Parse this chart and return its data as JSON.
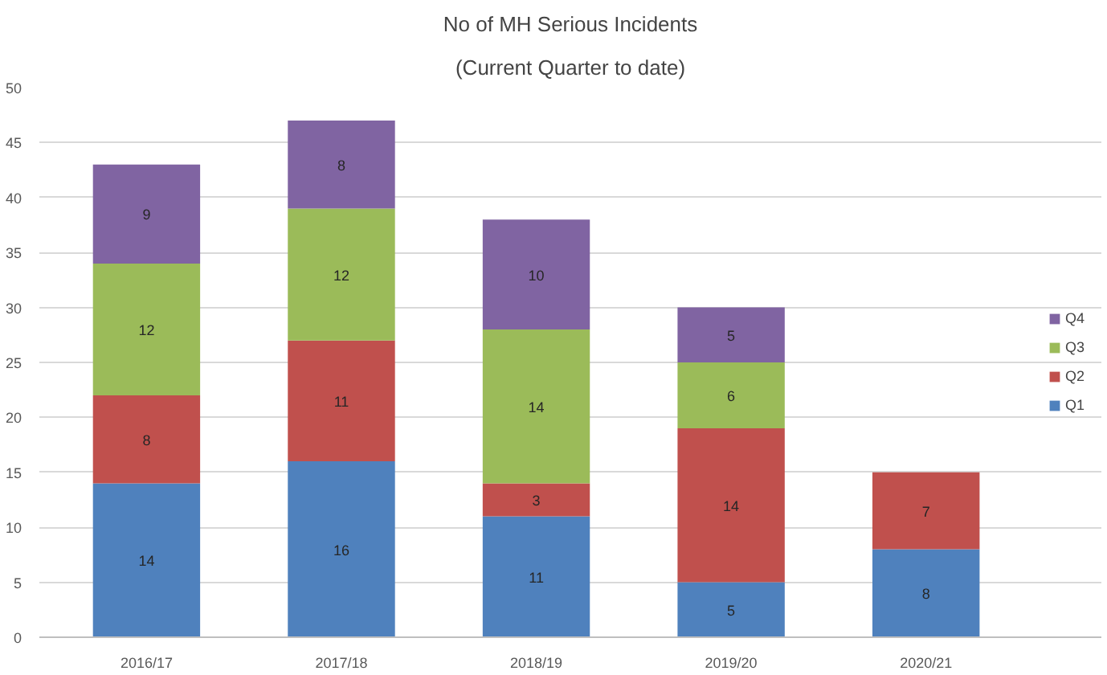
{
  "chart_data": {
    "type": "bar",
    "title": "No of MH Serious Incidents",
    "subtitle": "(Current Quarter to date)",
    "categories": [
      "2016/17",
      "2017/18",
      "2018/19",
      "2019/20",
      "2020/21"
    ],
    "series": [
      {
        "name": "Q1",
        "color": "#4f81bd",
        "values": [
          14,
          16,
          11,
          5,
          8
        ]
      },
      {
        "name": "Q2",
        "color": "#c0504d",
        "values": [
          8,
          11,
          3,
          14,
          7
        ]
      },
      {
        "name": "Q3",
        "color": "#9bbb59",
        "values": [
          12,
          12,
          14,
          6,
          null
        ]
      },
      {
        "name": "Q4",
        "color": "#8064a2",
        "values": [
          9,
          8,
          10,
          5,
          null
        ]
      }
    ],
    "stacked": true,
    "data_labels": true,
    "ylim": [
      0,
      50
    ],
    "yticks": [
      0,
      5,
      10,
      15,
      20,
      25,
      30,
      35,
      40,
      45,
      50
    ],
    "grid": "y",
    "legend": "right"
  }
}
